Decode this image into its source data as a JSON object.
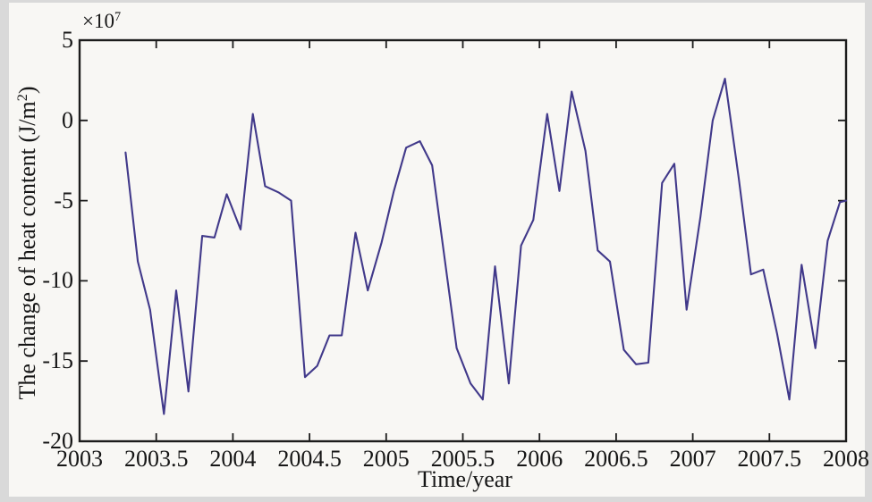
{
  "figure": {
    "frame_color": "#d9d9d9",
    "background": "#f8f7f4",
    "axis_color": "#1c1c1c",
    "text_color": "#161616"
  },
  "chart_data": {
    "type": "line",
    "title": "",
    "xlabel": "Time/year",
    "ylabel_parts": {
      "main": "The change of heat content (J/m",
      "sup": "2",
      "close": ")"
    },
    "y_multiplier": {
      "base": "×10",
      "exp": "7"
    },
    "xlim": [
      2003,
      2008
    ],
    "ylim": [
      -20,
      5
    ],
    "y_unit_scale": "1e7",
    "grid": false,
    "legend": "none",
    "x_ticks": [
      2003,
      2003.5,
      2004,
      2004.5,
      2005,
      2005.5,
      2006,
      2006.5,
      2007,
      2007.5,
      2008
    ],
    "x_tick_labels": [
      "2003",
      "2003.5",
      "2004",
      "2004.5",
      "2005",
      "2005.5",
      "2006",
      "2006.5",
      "2007",
      "2007.5",
      "2008"
    ],
    "y_ticks": [
      5,
      0,
      -5,
      -10,
      -15,
      -20
    ],
    "y_tick_labels": [
      "5",
      "0",
      "-5",
      "-10",
      "-15",
      "-20"
    ],
    "line_color": "#41398a",
    "series": [
      {
        "name": "change-of-heat-content",
        "points": [
          [
            2003.3,
            -2.0
          ],
          [
            2003.38,
            -8.8
          ],
          [
            2003.46,
            -11.8
          ],
          [
            2003.55,
            -18.3
          ],
          [
            2003.63,
            -10.6
          ],
          [
            2003.71,
            -16.9
          ],
          [
            2003.8,
            -7.2
          ],
          [
            2003.88,
            -7.3
          ],
          [
            2003.96,
            -4.6
          ],
          [
            2004.05,
            -6.8
          ],
          [
            2004.13,
            0.4
          ],
          [
            2004.21,
            -4.1
          ],
          [
            2004.3,
            -4.5
          ],
          [
            2004.38,
            -5.0
          ],
          [
            2004.47,
            -16.0
          ],
          [
            2004.55,
            -15.3
          ],
          [
            2004.63,
            -13.4
          ],
          [
            2004.71,
            -13.4
          ],
          [
            2004.8,
            -7.0
          ],
          [
            2004.88,
            -10.6
          ],
          [
            2004.97,
            -7.6
          ],
          [
            2005.05,
            -4.4
          ],
          [
            2005.13,
            -1.7
          ],
          [
            2005.22,
            -1.3
          ],
          [
            2005.3,
            -2.8
          ],
          [
            2005.38,
            -8.5
          ],
          [
            2005.46,
            -14.2
          ],
          [
            2005.55,
            -16.4
          ],
          [
            2005.63,
            -17.4
          ],
          [
            2005.71,
            -9.1
          ],
          [
            2005.8,
            -16.4
          ],
          [
            2005.88,
            -7.8
          ],
          [
            2005.96,
            -6.2
          ],
          [
            2006.05,
            0.4
          ],
          [
            2006.13,
            -4.4
          ],
          [
            2006.21,
            1.8
          ],
          [
            2006.3,
            -1.9
          ],
          [
            2006.38,
            -8.1
          ],
          [
            2006.46,
            -8.8
          ],
          [
            2006.55,
            -14.3
          ],
          [
            2006.63,
            -15.2
          ],
          [
            2006.71,
            -15.1
          ],
          [
            2006.8,
            -3.9
          ],
          [
            2006.88,
            -2.7
          ],
          [
            2006.96,
            -11.8
          ],
          [
            2007.05,
            -6.0
          ],
          [
            2007.13,
            0.0
          ],
          [
            2007.21,
            2.6
          ],
          [
            2007.3,
            -3.6
          ],
          [
            2007.38,
            -9.6
          ],
          [
            2007.46,
            -9.3
          ],
          [
            2007.55,
            -13.3
          ],
          [
            2007.63,
            -17.4
          ],
          [
            2007.71,
            -9.0
          ],
          [
            2007.8,
            -14.2
          ],
          [
            2007.88,
            -7.5
          ],
          [
            2007.96,
            -5.1
          ],
          [
            2008.0,
            -5.0
          ]
        ]
      }
    ]
  }
}
